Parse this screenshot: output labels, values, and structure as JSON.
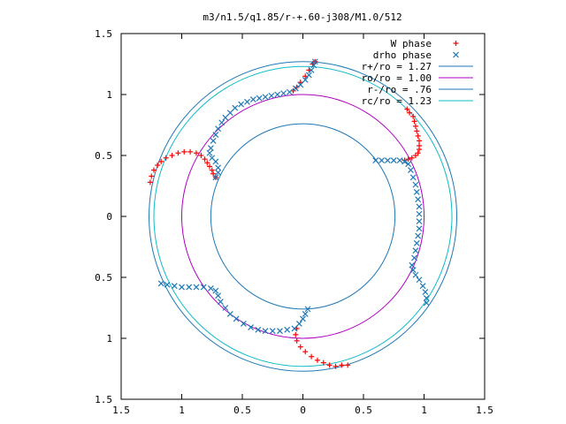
{
  "chart_data": {
    "type": "scatter",
    "title": "m3/n1.5/q1.85/r-+.60-j308/M1.0/512",
    "xlabel": "",
    "ylabel": "",
    "xlim": [
      -1.5,
      1.5
    ],
    "ylim": [
      -1.5,
      1.5
    ],
    "x_tick_labels": [
      "1.5",
      "1",
      "0.5",
      "0",
      "0.5",
      "1",
      "1.5"
    ],
    "y_tick_labels": [
      "1.5",
      "1",
      "0.5",
      "0",
      "0.5",
      "1",
      "1.5"
    ],
    "grid": false,
    "legend_position": "top-right",
    "circles": [
      {
        "name": "r+/ro = 1.27",
        "r": 1.27,
        "color": "#1f78b4"
      },
      {
        "name": "ro/ro = 1.00",
        "r": 1.0,
        "color": "#b000c0"
      },
      {
        "name": "r-/ro = .76",
        "r": 0.76,
        "color": "#1f78b4"
      },
      {
        "name": "rc/ro = 1.23",
        "r": 1.23,
        "color": "#11bcc6"
      }
    ],
    "series": [
      {
        "name": "W phase",
        "marker": "plus",
        "color": "#ff0000",
        "points": [
          [
            0.1,
            1.27
          ],
          [
            0.08,
            1.25
          ],
          [
            0.05,
            1.2
          ],
          [
            0.02,
            1.15
          ],
          [
            -0.02,
            1.1
          ],
          [
            -0.05,
            1.06
          ],
          [
            -0.08,
            1.03
          ],
          [
            0.86,
            0.88
          ],
          [
            0.88,
            0.85
          ],
          [
            0.91,
            0.82
          ],
          [
            0.92,
            0.78
          ],
          [
            0.93,
            0.74
          ],
          [
            0.94,
            0.7
          ],
          [
            0.95,
            0.66
          ],
          [
            0.96,
            0.62
          ],
          [
            0.96,
            0.58
          ],
          [
            0.96,
            0.55
          ],
          [
            0.95,
            0.52
          ],
          [
            0.93,
            0.5
          ],
          [
            0.9,
            0.48
          ],
          [
            0.87,
            0.47
          ],
          [
            0.84,
            0.46
          ],
          [
            -1.26,
            0.28
          ],
          [
            -1.25,
            0.33
          ],
          [
            -1.23,
            0.38
          ],
          [
            -1.2,
            0.42
          ],
          [
            -1.17,
            0.45
          ],
          [
            -1.13,
            0.48
          ],
          [
            -1.08,
            0.5
          ],
          [
            -1.03,
            0.52
          ],
          [
            -0.98,
            0.53
          ],
          [
            -0.93,
            0.53
          ],
          [
            -0.88,
            0.52
          ],
          [
            -0.84,
            0.5
          ],
          [
            -0.81,
            0.47
          ],
          [
            -0.79,
            0.44
          ],
          [
            -0.77,
            0.41
          ],
          [
            -0.75,
            0.38
          ],
          [
            -0.74,
            0.35
          ],
          [
            -0.72,
            0.32
          ],
          [
            -0.05,
            -0.92
          ],
          [
            -0.06,
            -0.97
          ],
          [
            -0.05,
            -1.02
          ],
          [
            -0.02,
            -1.07
          ],
          [
            0.02,
            -1.11
          ],
          [
            0.07,
            -1.15
          ],
          [
            0.12,
            -1.18
          ],
          [
            0.17,
            -1.2
          ],
          [
            0.22,
            -1.22
          ],
          [
            0.27,
            -1.23
          ],
          [
            0.32,
            -1.22
          ],
          [
            0.37,
            -1.22
          ]
        ]
      },
      {
        "name": "drho phase",
        "marker": "cross",
        "color": "#1f78b4",
        "points": [
          [
            0.1,
            1.27
          ],
          [
            0.09,
            1.24
          ],
          [
            0.07,
            1.2
          ],
          [
            0.05,
            1.16
          ],
          [
            0.02,
            1.12
          ],
          [
            -0.02,
            1.08
          ],
          [
            -0.06,
            1.05
          ],
          [
            -0.11,
            1.02
          ],
          [
            -0.16,
            1.01
          ],
          [
            -0.21,
            1.0
          ],
          [
            -0.26,
            0.99
          ],
          [
            -0.31,
            0.98
          ],
          [
            -0.36,
            0.97
          ],
          [
            -0.41,
            0.96
          ],
          [
            -0.46,
            0.94
          ],
          [
            -0.51,
            0.92
          ],
          [
            -0.56,
            0.89
          ],
          [
            -0.6,
            0.85
          ],
          [
            -0.64,
            0.81
          ],
          [
            -0.67,
            0.77
          ],
          [
            -0.7,
            0.72
          ],
          [
            -0.72,
            0.67
          ],
          [
            -0.74,
            0.62
          ],
          [
            -0.76,
            0.56
          ],
          [
            -0.77,
            0.52
          ],
          [
            -0.75,
            0.48
          ],
          [
            -0.72,
            0.45
          ],
          [
            -0.7,
            0.4
          ],
          [
            -0.7,
            0.36
          ],
          [
            -0.72,
            0.32
          ],
          [
            0.6,
            0.46
          ],
          [
            0.65,
            0.46
          ],
          [
            0.7,
            0.46
          ],
          [
            0.75,
            0.46
          ],
          [
            0.8,
            0.46
          ],
          [
            0.84,
            0.45
          ],
          [
            0.87,
            0.43
          ],
          [
            0.89,
            0.38
          ],
          [
            0.91,
            0.32
          ],
          [
            0.93,
            0.26
          ],
          [
            0.94,
            0.2
          ],
          [
            0.95,
            0.14
          ],
          [
            0.96,
            0.08
          ],
          [
            0.96,
            0.02
          ],
          [
            0.96,
            -0.04
          ],
          [
            0.96,
            -0.1
          ],
          [
            0.95,
            -0.16
          ],
          [
            0.94,
            -0.22
          ],
          [
            0.93,
            -0.28
          ],
          [
            0.92,
            -0.34
          ],
          [
            0.9,
            -0.4
          ],
          [
            0.91,
            -0.44
          ],
          [
            0.93,
            -0.48
          ],
          [
            0.96,
            -0.52
          ],
          [
            0.99,
            -0.57
          ],
          [
            1.01,
            -0.62
          ],
          [
            1.02,
            -0.67
          ],
          [
            1.02,
            -0.71
          ],
          [
            -1.17,
            -0.55
          ],
          [
            -1.12,
            -0.56
          ],
          [
            -1.06,
            -0.57
          ],
          [
            -1.0,
            -0.58
          ],
          [
            -0.94,
            -0.58
          ],
          [
            -0.88,
            -0.58
          ],
          [
            -0.82,
            -0.58
          ],
          [
            -0.76,
            -0.59
          ],
          [
            -0.72,
            -0.61
          ],
          [
            -0.7,
            -0.65
          ],
          [
            -0.68,
            -0.7
          ],
          [
            -0.64,
            -0.75
          ],
          [
            -0.6,
            -0.8
          ],
          [
            -0.55,
            -0.84
          ],
          [
            -0.49,
            -0.88
          ],
          [
            -0.43,
            -0.91
          ],
          [
            -0.37,
            -0.93
          ],
          [
            -0.31,
            -0.94
          ],
          [
            -0.25,
            -0.94
          ],
          [
            -0.19,
            -0.94
          ],
          [
            -0.13,
            -0.93
          ],
          [
            -0.07,
            -0.92
          ],
          [
            -0.03,
            -0.88
          ],
          [
            0.0,
            -0.84
          ],
          [
            0.02,
            -0.8
          ],
          [
            0.04,
            -0.76
          ]
        ]
      }
    ]
  }
}
